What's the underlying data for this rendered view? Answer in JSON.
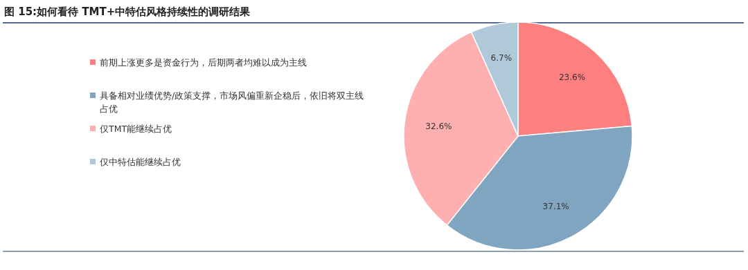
{
  "chart_data": {
    "type": "pie",
    "title": "图 15:如何看待 TMT+中特估风格持续性的调研结果",
    "categories": [
      "前期上涨更多是资金行为，后期两者均难以成为主线",
      "具备相对业绩优势/政策支撑，市场风偏重新企稳后，依旧将双主线占优",
      "仅TMT能继续占优",
      "仅中特估能继续占优"
    ],
    "values": [
      23.6,
      37.1,
      32.6,
      6.7
    ],
    "colors": [
      "#fe7f7f",
      "#7fa5c0",
      "#feb0b0",
      "#b0c9d9"
    ],
    "value_labels": [
      "23.6%",
      "37.1%",
      "32.6%",
      "6.7%"
    ],
    "legend": "left"
  }
}
